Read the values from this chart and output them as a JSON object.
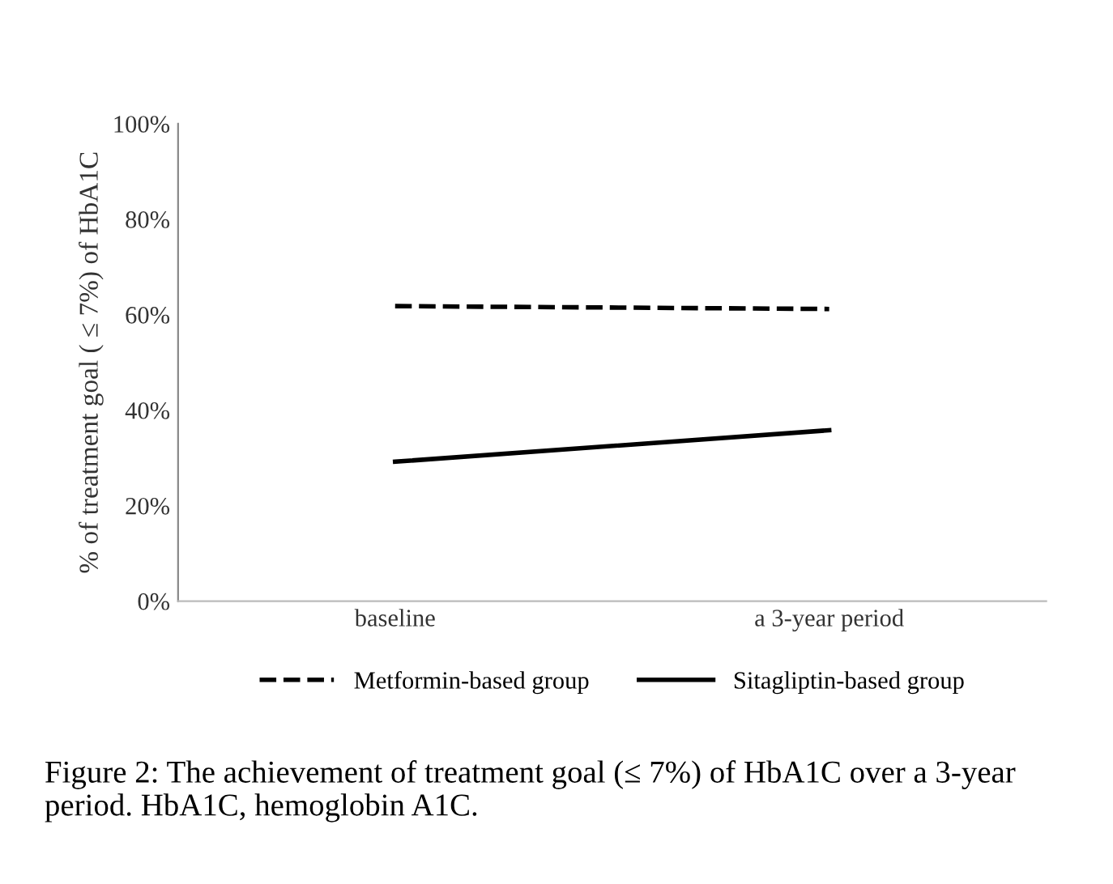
{
  "chart_data": {
    "type": "line",
    "ylabel": "% of treatment goal ( ≤ 7%) of HbA1C",
    "categories": [
      "baseline",
      "a 3-year period"
    ],
    "series": [
      {
        "name": "Metformin-based group",
        "color": "#000000",
        "line_style": "dashed",
        "values": [
          61.8,
          61.2
        ]
      },
      {
        "name": "Sitagliptin-based group",
        "color": "#000000",
        "line_style": "solid",
        "values": [
          29.2,
          35.8
        ]
      }
    ],
    "ylim": [
      0,
      100
    ],
    "yticks": [
      {
        "value": 0,
        "label": "0%"
      },
      {
        "value": 20,
        "label": "20%"
      },
      {
        "value": 40,
        "label": "40%"
      },
      {
        "value": 60,
        "label": "60%"
      },
      {
        "value": 80,
        "label": "80%"
      },
      {
        "value": 100,
        "label": "100%"
      }
    ],
    "grid": false,
    "legend": "bottom",
    "annotations": [
      "Figure 2: The achievement of treatment goal (≤ 7%) of HbA1C over a 3-year period. HbA1C, hemoglobin A1C."
    ]
  }
}
